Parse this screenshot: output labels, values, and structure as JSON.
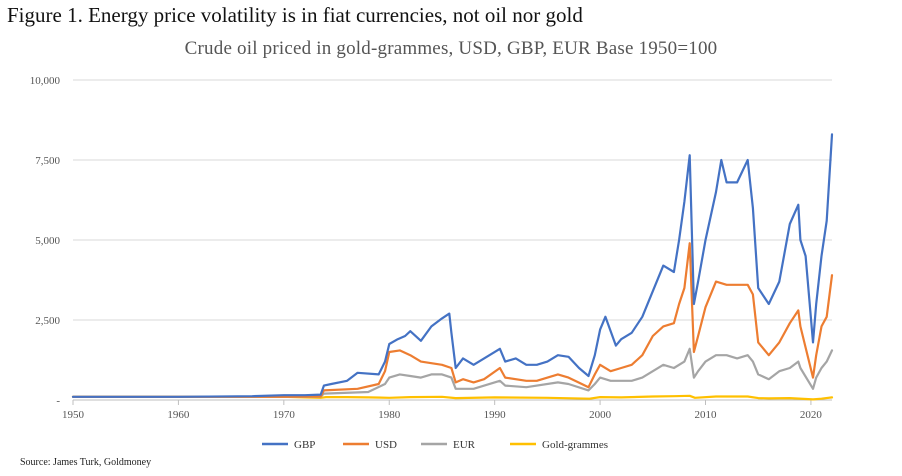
{
  "figure_title": "Figure 1. Energy price volatility is in fiat currencies, not oil nor gold",
  "source": "Source: James Turk, Goldmoney",
  "chart_data": {
    "type": "line",
    "title": "Crude oil priced in gold-grammes, USD, GBP, EUR Base 1950=100",
    "xlabel": "",
    "ylabel": "",
    "xlim": [
      1950,
      2022
    ],
    "ylim": [
      0,
      10000
    ],
    "x_ticks": [
      1950,
      1960,
      1970,
      1980,
      1990,
      2000,
      2010,
      2020
    ],
    "y_ticks": [
      {
        "value": 10000,
        "label": "10,000"
      },
      {
        "value": 7500,
        "label": "7,500"
      },
      {
        "value": 5000,
        "label": "5,000"
      },
      {
        "value": 2500,
        "label": "2,500"
      },
      {
        "value": 0,
        "label": "-"
      }
    ],
    "legend_position": "bottom",
    "series": [
      {
        "name": "GBP",
        "color": "#4472C4",
        "points": [
          [
            1950,
            100
          ],
          [
            1960,
            100
          ],
          [
            1967,
            120
          ],
          [
            1970,
            150
          ],
          [
            1972,
            150
          ],
          [
            1973.5,
            170
          ],
          [
            1973.8,
            450
          ],
          [
            1974.5,
            500
          ],
          [
            1976,
            600
          ],
          [
            1977,
            850
          ],
          [
            1979,
            800
          ],
          [
            1979.6,
            1200
          ],
          [
            1980,
            1750
          ],
          [
            1980.8,
            1900
          ],
          [
            1981.5,
            2000
          ],
          [
            1982,
            2150
          ],
          [
            1983,
            1850
          ],
          [
            1984,
            2300
          ],
          [
            1985,
            2550
          ],
          [
            1985.7,
            2700
          ],
          [
            1985.9,
            2100
          ],
          [
            1986.3,
            1000
          ],
          [
            1987,
            1300
          ],
          [
            1988,
            1100
          ],
          [
            1989,
            1300
          ],
          [
            1990.5,
            1600
          ],
          [
            1991,
            1200
          ],
          [
            1992,
            1300
          ],
          [
            1993,
            1100
          ],
          [
            1994,
            1100
          ],
          [
            1995,
            1200
          ],
          [
            1996,
            1400
          ],
          [
            1997,
            1350
          ],
          [
            1998,
            1000
          ],
          [
            1998.9,
            750
          ],
          [
            1999.5,
            1400
          ],
          [
            2000,
            2200
          ],
          [
            2000.5,
            2600
          ],
          [
            2001.5,
            1700
          ],
          [
            2002,
            1900
          ],
          [
            2003,
            2100
          ],
          [
            2004,
            2600
          ],
          [
            2005,
            3400
          ],
          [
            2006,
            4200
          ],
          [
            2007,
            4000
          ],
          [
            2007.5,
            5000
          ],
          [
            2008,
            6200
          ],
          [
            2008.5,
            7650
          ],
          [
            2008.9,
            3000
          ],
          [
            2009.3,
            3700
          ],
          [
            2010,
            5000
          ],
          [
            2011,
            6500
          ],
          [
            2011.5,
            7500
          ],
          [
            2012,
            6800
          ],
          [
            2013,
            6800
          ],
          [
            2014,
            7500
          ],
          [
            2014.5,
            6000
          ],
          [
            2015,
            3500
          ],
          [
            2016,
            3000
          ],
          [
            2017,
            3700
          ],
          [
            2018,
            5500
          ],
          [
            2018.8,
            6100
          ],
          [
            2019,
            5000
          ],
          [
            2019.5,
            4500
          ],
          [
            2020.2,
            1800
          ],
          [
            2020.5,
            3000
          ],
          [
            2021,
            4500
          ],
          [
            2021.5,
            5600
          ],
          [
            2022,
            8300
          ]
        ]
      },
      {
        "name": "USD",
        "color": "#ED7D31",
        "points": [
          [
            1950,
            100
          ],
          [
            1960,
            100
          ],
          [
            1970,
            100
          ],
          [
            1973.5,
            110
          ],
          [
            1973.8,
            300
          ],
          [
            1977,
            350
          ],
          [
            1979,
            500
          ],
          [
            1979.6,
            900
          ],
          [
            1980,
            1500
          ],
          [
            1981,
            1550
          ],
          [
            1982,
            1400
          ],
          [
            1983,
            1200
          ],
          [
            1984,
            1150
          ],
          [
            1985,
            1100
          ],
          [
            1985.9,
            1000
          ],
          [
            1986.3,
            550
          ],
          [
            1987,
            650
          ],
          [
            1988,
            550
          ],
          [
            1989,
            650
          ],
          [
            1990.5,
            1000
          ],
          [
            1991,
            700
          ],
          [
            1993,
            600
          ],
          [
            1994,
            600
          ],
          [
            1996,
            800
          ],
          [
            1997,
            700
          ],
          [
            1998.9,
            400
          ],
          [
            1999.5,
            800
          ],
          [
            2000,
            1100
          ],
          [
            2001,
            900
          ],
          [
            2002,
            1000
          ],
          [
            2003,
            1100
          ],
          [
            2004,
            1400
          ],
          [
            2005,
            2000
          ],
          [
            2006,
            2300
          ],
          [
            2007,
            2400
          ],
          [
            2007.5,
            3000
          ],
          [
            2008,
            3500
          ],
          [
            2008.5,
            4900
          ],
          [
            2008.9,
            1500
          ],
          [
            2009.3,
            2000
          ],
          [
            2010,
            2900
          ],
          [
            2011,
            3700
          ],
          [
            2012,
            3600
          ],
          [
            2013,
            3600
          ],
          [
            2014,
            3600
          ],
          [
            2014.5,
            3300
          ],
          [
            2015,
            1800
          ],
          [
            2016,
            1400
          ],
          [
            2017,
            1800
          ],
          [
            2018,
            2400
          ],
          [
            2018.8,
            2800
          ],
          [
            2019,
            2300
          ],
          [
            2020.2,
            700
          ],
          [
            2020.5,
            1400
          ],
          [
            2021,
            2300
          ],
          [
            2021.5,
            2600
          ],
          [
            2022,
            3900
          ]
        ]
      },
      {
        "name": "EUR",
        "color": "#A5A5A5",
        "points": [
          [
            1950,
            100
          ],
          [
            1960,
            100
          ],
          [
            1970,
            100
          ],
          [
            1973.5,
            105
          ],
          [
            1973.8,
            200
          ],
          [
            1978,
            250
          ],
          [
            1979.6,
            500
          ],
          [
            1980,
            700
          ],
          [
            1981,
            800
          ],
          [
            1982,
            750
          ],
          [
            1983,
            700
          ],
          [
            1984,
            800
          ],
          [
            1985,
            800
          ],
          [
            1985.9,
            700
          ],
          [
            1986.3,
            350
          ],
          [
            1988,
            350
          ],
          [
            1990.5,
            600
          ],
          [
            1991,
            450
          ],
          [
            1993,
            400
          ],
          [
            1996,
            550
          ],
          [
            1997,
            500
          ],
          [
            1998.9,
            300
          ],
          [
            1999.5,
            500
          ],
          [
            2000,
            700
          ],
          [
            2001,
            600
          ],
          [
            2003,
            600
          ],
          [
            2004,
            700
          ],
          [
            2005,
            900
          ],
          [
            2006,
            1100
          ],
          [
            2007,
            1000
          ],
          [
            2008,
            1200
          ],
          [
            2008.5,
            1600
          ],
          [
            2008.9,
            700
          ],
          [
            2009.3,
            900
          ],
          [
            2010,
            1200
          ],
          [
            2011,
            1400
          ],
          [
            2012,
            1400
          ],
          [
            2013,
            1300
          ],
          [
            2014,
            1400
          ],
          [
            2014.5,
            1200
          ],
          [
            2015,
            800
          ],
          [
            2016,
            650
          ],
          [
            2017,
            900
          ],
          [
            2018,
            1000
          ],
          [
            2018.8,
            1200
          ],
          [
            2019,
            1000
          ],
          [
            2020.2,
            350
          ],
          [
            2020.5,
            700
          ],
          [
            2021,
            1000
          ],
          [
            2021.5,
            1200
          ],
          [
            2022,
            1550
          ]
        ]
      },
      {
        "name": "Gold-grammes",
        "color": "#FFC000",
        "points": [
          [
            1950,
            100
          ],
          [
            1960,
            100
          ],
          [
            1968,
            100
          ],
          [
            1970,
            100
          ],
          [
            1972,
            80
          ],
          [
            1973.5,
            70
          ],
          [
            1974,
            90
          ],
          [
            1976,
            90
          ],
          [
            1978,
            80
          ],
          [
            1980,
            70
          ],
          [
            1982,
            90
          ],
          [
            1985,
            100
          ],
          [
            1986.3,
            60
          ],
          [
            1990,
            80
          ],
          [
            1995,
            70
          ],
          [
            1999,
            40
          ],
          [
            2000,
            90
          ],
          [
            2002,
            80
          ],
          [
            2005,
            110
          ],
          [
            2007,
            120
          ],
          [
            2008.5,
            130
          ],
          [
            2009,
            70
          ],
          [
            2011,
            110
          ],
          [
            2014,
            110
          ],
          [
            2015,
            60
          ],
          [
            2016,
            50
          ],
          [
            2018,
            60
          ],
          [
            2020.2,
            20
          ],
          [
            2021,
            40
          ],
          [
            2022,
            80
          ]
        ]
      }
    ]
  }
}
